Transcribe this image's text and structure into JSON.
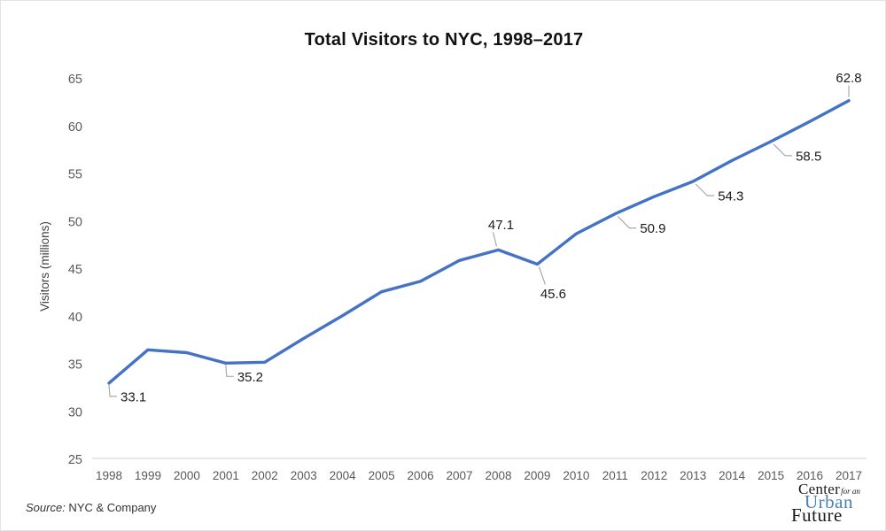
{
  "title": "Total Visitors to NYC, 1998–2017",
  "source": {
    "prefix": "Source:",
    "text": " NYC & Company"
  },
  "logo": {
    "center": "Center",
    "for_an": "for an",
    "urban": "Urban",
    "future": "Future",
    "urban_color": "#4d82b0",
    "text_color": "#1a1a1a"
  },
  "colors": {
    "line": "#4472C4",
    "axis_line": "#d9d9d9",
    "tick_label": "#595959",
    "data_label": "#1a1a1a",
    "leader_line": "#a9a9a9"
  },
  "chart_data": {
    "type": "line",
    "title": "Total Visitors to NYC, 1998–2017",
    "xlabel": "",
    "ylabel": "Visitors (millions)",
    "ylim": [
      25,
      65
    ],
    "ytick_step": 5,
    "grid": false,
    "legend": false,
    "x": [
      1998,
      1999,
      2000,
      2001,
      2002,
      2003,
      2004,
      2005,
      2006,
      2007,
      2008,
      2009,
      2010,
      2011,
      2012,
      2013,
      2014,
      2015,
      2016,
      2017
    ],
    "series": [
      {
        "name": "Total Visitors",
        "color": "#4472C4",
        "values": [
          33.1,
          36.6,
          36.3,
          35.2,
          35.3,
          37.8,
          40.2,
          42.7,
          43.8,
          46.0,
          47.1,
          45.6,
          48.8,
          50.9,
          52.7,
          54.3,
          56.5,
          58.5,
          60.6,
          62.8
        ]
      }
    ],
    "annotations": [
      {
        "x": 1998,
        "text": "33.1",
        "placement": "below-right"
      },
      {
        "x": 2001,
        "text": "35.2",
        "placement": "below-right"
      },
      {
        "x": 2008,
        "text": "47.1",
        "placement": "above-left"
      },
      {
        "x": 2009,
        "text": "45.6",
        "placement": "below"
      },
      {
        "x": 2011,
        "text": "50.9",
        "placement": "right-below"
      },
      {
        "x": 2013,
        "text": "54.3",
        "placement": "right-below"
      },
      {
        "x": 2015,
        "text": "58.5",
        "placement": "right-below"
      },
      {
        "x": 2017,
        "text": "62.8",
        "placement": "above"
      }
    ]
  }
}
